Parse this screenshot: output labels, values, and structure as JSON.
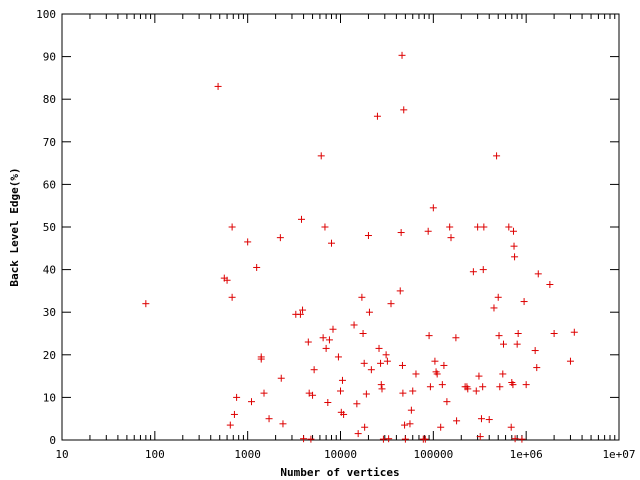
{
  "chart_data": {
    "type": "scatter",
    "title": "",
    "xlabel": "Number of vertices",
    "ylabel": "Back Level Edge(%)",
    "xscale": "log",
    "xlim": [
      10,
      10000000
    ],
    "ylim": [
      0,
      100
    ],
    "x_tick_labels": [
      "10",
      "100",
      "1000",
      "10000",
      "100000",
      "1e+06",
      "1e+07"
    ],
    "y_tick_labels": [
      "0",
      "10",
      "20",
      "30",
      "40",
      "50",
      "60",
      "70",
      "80",
      "90",
      "100"
    ],
    "marker": "plus",
    "color": "#dd0000",
    "grid": false,
    "series": [
      {
        "points": [
          [
            80,
            32
          ],
          [
            480,
            83
          ],
          [
            560,
            38
          ],
          [
            600,
            37.5
          ],
          [
            680,
            33.5
          ],
          [
            680,
            50
          ],
          [
            650,
            3.5
          ],
          [
            720,
            6
          ],
          [
            760,
            10
          ],
          [
            1000,
            46.5
          ],
          [
            1100,
            9
          ],
          [
            1250,
            40.5
          ],
          [
            1400,
            19.5
          ],
          [
            1400,
            19
          ],
          [
            1500,
            11
          ],
          [
            1700,
            5
          ],
          [
            2250,
            47.5
          ],
          [
            2300,
            14.5
          ],
          [
            2400,
            3.8
          ],
          [
            3300,
            29.5
          ],
          [
            3700,
            29.5
          ],
          [
            3800,
            51.8
          ],
          [
            3900,
            30.5
          ],
          [
            4000,
            0.3
          ],
          [
            4500,
            23
          ],
          [
            4600,
            11
          ],
          [
            4800,
            0.2
          ],
          [
            5000,
            10.5
          ],
          [
            5200,
            16.5
          ],
          [
            6200,
            66.7
          ],
          [
            6500,
            24
          ],
          [
            6800,
            50
          ],
          [
            7000,
            21.5
          ],
          [
            7300,
            8.8
          ],
          [
            7600,
            23.5
          ],
          [
            8000,
            46.2
          ],
          [
            8300,
            26
          ],
          [
            9500,
            19.5
          ],
          [
            10000,
            11.5
          ],
          [
            10200,
            6.5
          ],
          [
            10500,
            14
          ],
          [
            10800,
            6
          ],
          [
            14000,
            27
          ],
          [
            15000,
            8.5
          ],
          [
            15500,
            1.5
          ],
          [
            17000,
            33.5
          ],
          [
            17500,
            25
          ],
          [
            18000,
            18
          ],
          [
            18200,
            3
          ],
          [
            19000,
            10.8
          ],
          [
            20000,
            48
          ],
          [
            20500,
            30
          ],
          [
            21500,
            16.5
          ],
          [
            25000,
            76
          ],
          [
            26000,
            21.5
          ],
          [
            27000,
            18
          ],
          [
            27500,
            13
          ],
          [
            28000,
            12
          ],
          [
            29000,
            0.2
          ],
          [
            31000,
            20
          ],
          [
            32000,
            18.5
          ],
          [
            33000,
            0.3
          ],
          [
            35000,
            32
          ],
          [
            44000,
            35
          ],
          [
            45000,
            48.7
          ],
          [
            46000,
            90.3
          ],
          [
            46500,
            17.5
          ],
          [
            47000,
            11
          ],
          [
            48000,
            77.5
          ],
          [
            49000,
            3.5
          ],
          [
            50000,
            0.2
          ],
          [
            56000,
            3.8
          ],
          [
            58000,
            7
          ],
          [
            60000,
            11.5
          ],
          [
            65000,
            15.5
          ],
          [
            78000,
            0.2
          ],
          [
            82000,
            0.2
          ],
          [
            88000,
            49
          ],
          [
            90000,
            24.5
          ],
          [
            93000,
            12.5
          ],
          [
            100000,
            54.5
          ],
          [
            104000,
            18.5
          ],
          [
            107000,
            16
          ],
          [
            110000,
            15.5
          ],
          [
            120000,
            3
          ],
          [
            125000,
            13
          ],
          [
            130000,
            17.5
          ],
          [
            140000,
            9
          ],
          [
            150000,
            50
          ],
          [
            155000,
            47.5
          ],
          [
            175000,
            24
          ],
          [
            178000,
            4.5
          ],
          [
            220000,
            12.5
          ],
          [
            230000,
            12.5
          ],
          [
            235000,
            12
          ],
          [
            270000,
            39.5
          ],
          [
            290000,
            11.5
          ],
          [
            300000,
            50
          ],
          [
            310000,
            15
          ],
          [
            320000,
            0.8
          ],
          [
            330000,
            5
          ],
          [
            340000,
            12.5
          ],
          [
            345000,
            40
          ],
          [
            350000,
            50
          ],
          [
            400000,
            4.8
          ],
          [
            450000,
            31
          ],
          [
            480000,
            66.7
          ],
          [
            500000,
            33.5
          ],
          [
            510000,
            24.5
          ],
          [
            520000,
            12.5
          ],
          [
            560000,
            15.5
          ],
          [
            570000,
            22.5
          ],
          [
            650000,
            50
          ],
          [
            690000,
            3
          ],
          [
            700000,
            13.5
          ],
          [
            720000,
            13
          ],
          [
            730000,
            49
          ],
          [
            740000,
            45.5
          ],
          [
            750000,
            43
          ],
          [
            760000,
            0.3
          ],
          [
            800000,
            22.5
          ],
          [
            820000,
            25
          ],
          [
            900000,
            0.2
          ],
          [
            950000,
            32.5
          ],
          [
            1000000,
            13
          ],
          [
            1250000,
            21
          ],
          [
            1300000,
            17
          ],
          [
            1350000,
            39
          ],
          [
            1800000,
            36.5
          ],
          [
            2000000,
            25
          ],
          [
            3000000,
            18.5
          ],
          [
            3300000,
            25.3
          ]
        ]
      }
    ]
  }
}
